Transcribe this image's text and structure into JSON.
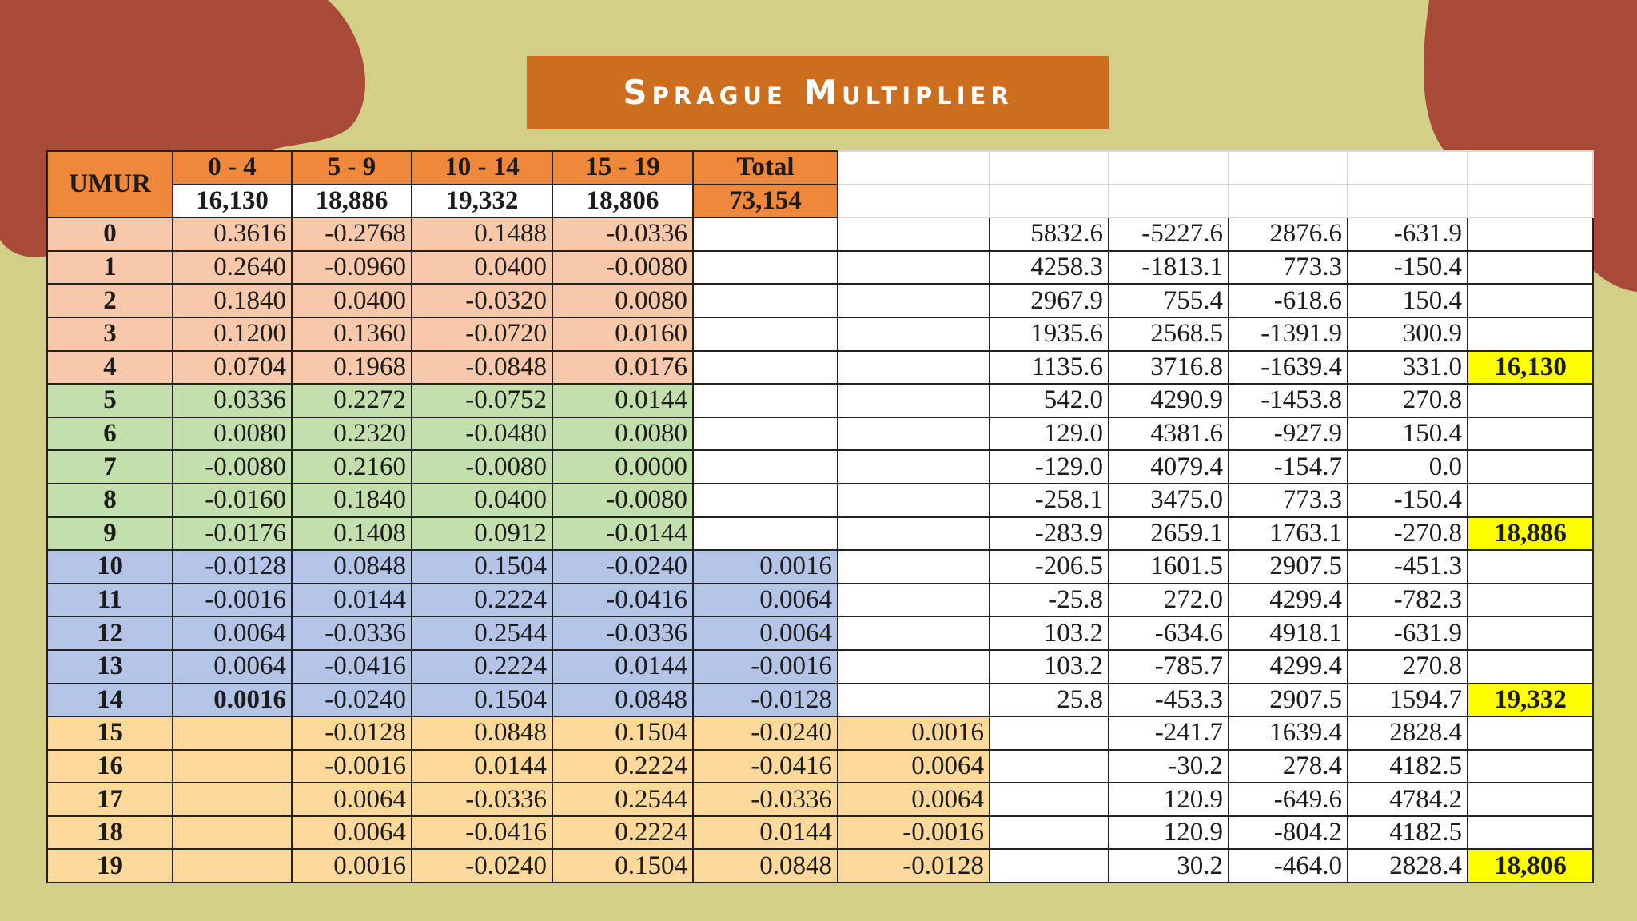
{
  "title": "Sprague Multiplier",
  "header": {
    "umur_label": "UMUR",
    "groups": [
      {
        "label": "0  -  4",
        "value": "16,130"
      },
      {
        "label": "5  -  9",
        "value": "18,886"
      },
      {
        "label": "10  -  14",
        "value": "19,332"
      },
      {
        "label": "15  -  19",
        "value": "18,806"
      }
    ],
    "total_label": "Total",
    "total_value": "73,154"
  },
  "rows": [
    {
      "age": "0",
      "group": "a",
      "m": [
        "0.3616",
        "-0.2768",
        "0.1488",
        "-0.0336",
        "",
        ""
      ],
      "r": [
        "5832.6",
        "-5227.6",
        "2876.6",
        "-631.9",
        ""
      ]
    },
    {
      "age": "1",
      "group": "a",
      "m": [
        "0.2640",
        "-0.0960",
        "0.0400",
        "-0.0080",
        "",
        ""
      ],
      "r": [
        "4258.3",
        "-1813.1",
        "773.3",
        "-150.4",
        ""
      ]
    },
    {
      "age": "2",
      "group": "a",
      "m": [
        "0.1840",
        "0.0400",
        "-0.0320",
        "0.0080",
        "",
        ""
      ],
      "r": [
        "2967.9",
        "755.4",
        "-618.6",
        "150.4",
        ""
      ]
    },
    {
      "age": "3",
      "group": "a",
      "m": [
        "0.1200",
        "0.1360",
        "-0.0720",
        "0.0160",
        "",
        ""
      ],
      "r": [
        "1935.6",
        "2568.5",
        "-1391.9",
        "300.9",
        ""
      ]
    },
    {
      "age": "4",
      "group": "a",
      "m": [
        "0.0704",
        "0.1968",
        "-0.0848",
        "0.0176",
        "",
        ""
      ],
      "r": [
        "1135.6",
        "3716.8",
        "-1639.4",
        "331.0",
        "16,130"
      ]
    },
    {
      "age": "5",
      "group": "b",
      "m": [
        "0.0336",
        "0.2272",
        "-0.0752",
        "0.0144",
        "",
        ""
      ],
      "r": [
        "542.0",
        "4290.9",
        "-1453.8",
        "270.8",
        ""
      ]
    },
    {
      "age": "6",
      "group": "b",
      "m": [
        "0.0080",
        "0.2320",
        "-0.0480",
        "0.0080",
        "",
        ""
      ],
      "r": [
        "129.0",
        "4381.6",
        "-927.9",
        "150.4",
        ""
      ]
    },
    {
      "age": "7",
      "group": "b",
      "m": [
        "-0.0080",
        "0.2160",
        "-0.0080",
        "0.0000",
        "",
        ""
      ],
      "r": [
        "-129.0",
        "4079.4",
        "-154.7",
        "0.0",
        ""
      ]
    },
    {
      "age": "8",
      "group": "b",
      "m": [
        "-0.0160",
        "0.1840",
        "0.0400",
        "-0.0080",
        "",
        ""
      ],
      "r": [
        "-258.1",
        "3475.0",
        "773.3",
        "-150.4",
        ""
      ]
    },
    {
      "age": "9",
      "group": "b",
      "m": [
        "-0.0176",
        "0.1408",
        "0.0912",
        "-0.0144",
        "",
        ""
      ],
      "r": [
        "-283.9",
        "2659.1",
        "1763.1",
        "-270.8",
        "18,886"
      ]
    },
    {
      "age": "10",
      "group": "c",
      "m": [
        "-0.0128",
        "0.0848",
        "0.1504",
        "-0.0240",
        "0.0016",
        ""
      ],
      "r": [
        "-206.5",
        "1601.5",
        "2907.5",
        "-451.3",
        ""
      ]
    },
    {
      "age": "11",
      "group": "c",
      "m": [
        "-0.0016",
        "0.0144",
        "0.2224",
        "-0.0416",
        "0.0064",
        ""
      ],
      "r": [
        "-25.8",
        "272.0",
        "4299.4",
        "-782.3",
        ""
      ]
    },
    {
      "age": "12",
      "group": "c",
      "m": [
        "0.0064",
        "-0.0336",
        "0.2544",
        "-0.0336",
        "0.0064",
        ""
      ],
      "r": [
        "103.2",
        "-634.6",
        "4918.1",
        "-631.9",
        ""
      ]
    },
    {
      "age": "13",
      "group": "c",
      "m": [
        "0.0064",
        "-0.0416",
        "0.2224",
        "0.0144",
        "-0.0016",
        ""
      ],
      "r": [
        "103.2",
        "-785.7",
        "4299.4",
        "270.8",
        ""
      ]
    },
    {
      "age": "14",
      "group": "c",
      "m": [
        "0.0016",
        "-0.0240",
        "0.1504",
        "0.0848",
        "-0.0128",
        ""
      ],
      "r": [
        "25.8",
        "-453.3",
        "2907.5",
        "1594.7",
        "19,332"
      ]
    },
    {
      "age": "15",
      "group": "d",
      "m": [
        "",
        "-0.0128",
        "0.0848",
        "0.1504",
        "-0.0240",
        "0.0016"
      ],
      "r": [
        "",
        "-241.7",
        "1639.4",
        "2828.4",
        ""
      ]
    },
    {
      "age": "16",
      "group": "d",
      "m": [
        "",
        "-0.0016",
        "0.0144",
        "0.2224",
        "-0.0416",
        "0.0064"
      ],
      "r": [
        "",
        "-30.2",
        "278.4",
        "4182.5",
        ""
      ]
    },
    {
      "age": "17",
      "group": "d",
      "m": [
        "",
        "0.0064",
        "-0.0336",
        "0.2544",
        "-0.0336",
        "0.0064"
      ],
      "r": [
        "",
        "120.9",
        "-649.6",
        "4784.2",
        ""
      ]
    },
    {
      "age": "18",
      "group": "d",
      "m": [
        "",
        "0.0064",
        "-0.0416",
        "0.2224",
        "0.0144",
        "-0.0016"
      ],
      "r": [
        "",
        "120.9",
        "-804.2",
        "4182.5",
        ""
      ]
    },
    {
      "age": "19",
      "group": "d",
      "m": [
        "",
        "0.0016",
        "-0.0240",
        "0.1504",
        "0.0848",
        "-0.0128"
      ],
      "r": [
        "",
        "30.2",
        "-464.0",
        "2828.4",
        "18,806"
      ]
    }
  ],
  "colors": {
    "background": "#d2d086",
    "blob": "#a84a37",
    "title_banner": "#cc6e1e",
    "header_orange": "#f0883c",
    "group_0_4": "#f8c8aa",
    "group_5_9": "#c4dfae",
    "group_10_14": "#b4c4e6",
    "group_15_19": "#fcd89a",
    "result_highlight": "#ffff00"
  }
}
